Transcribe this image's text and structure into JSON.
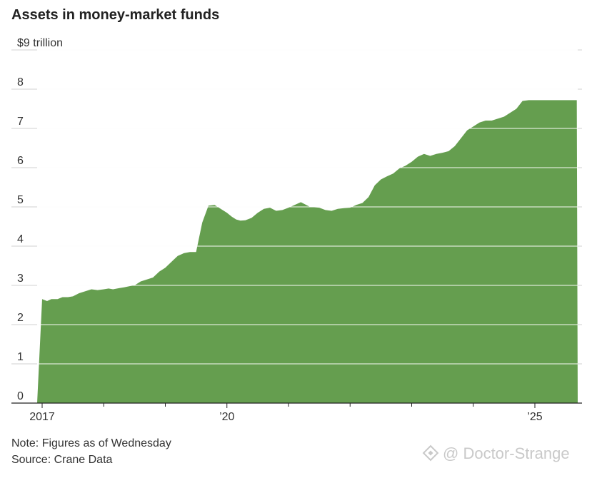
{
  "chart_data": {
    "type": "area",
    "title": "Assets in money-market funds",
    "ylabel": "$9 trillion",
    "ylim": [
      0,
      9
    ],
    "yticks": [
      0,
      1,
      2,
      3,
      4,
      5,
      6,
      7,
      8,
      9
    ],
    "ytick_labels": [
      "0",
      "1",
      "2",
      "3",
      "4",
      "5",
      "6",
      "7",
      "8",
      "$9 trillion"
    ],
    "xlim": [
      2017.0,
      2025.7
    ],
    "xticks": [
      2017,
      2020,
      2025
    ],
    "xtick_labels": [
      "2017",
      "’20",
      "’25"
    ],
    "grid": true,
    "colors": {
      "fill": "#659e4f",
      "grid": "#d0d0d0",
      "axis": "#222222"
    },
    "series": [
      {
        "x": [
          2017.0,
          2017.08,
          2017.15,
          2017.25,
          2017.33,
          2017.42,
          2017.5,
          2017.6,
          2017.7,
          2017.8,
          2017.9,
          2018.0,
          2018.08,
          2018.15,
          2018.25,
          2018.33,
          2018.42,
          2018.5,
          2018.6,
          2018.7,
          2018.8,
          2018.9,
          2019.0,
          2019.1,
          2019.2,
          2019.3,
          2019.4,
          2019.5,
          2019.6,
          2019.7,
          2019.8,
          2019.9,
          2020.0,
          2020.08,
          2020.15,
          2020.22,
          2020.3,
          2020.4,
          2020.5,
          2020.6,
          2020.7,
          2020.8,
          2020.9,
          2021.0,
          2021.1,
          2021.2,
          2021.35,
          2021.5,
          2021.6,
          2021.7,
          2021.8,
          2021.9,
          2022.0,
          2022.1,
          2022.2,
          2022.3,
          2022.4,
          2022.5,
          2022.6,
          2022.7,
          2022.8,
          2022.9,
          2023.0,
          2023.1,
          2023.2,
          2023.3,
          2023.4,
          2023.5,
          2023.6,
          2023.7,
          2023.8,
          2023.9,
          2024.0,
          2024.1,
          2024.2,
          2024.3,
          2024.4,
          2024.5,
          2024.6,
          2024.7,
          2024.8,
          2024.9,
          2025.0,
          2025.1,
          2025.2,
          2025.3,
          2025.4,
          2025.5,
          2025.6,
          2025.68
        ],
        "values": [
          2.65,
          2.6,
          2.65,
          2.65,
          2.7,
          2.7,
          2.72,
          2.8,
          2.85,
          2.9,
          2.88,
          2.9,
          2.92,
          2.9,
          2.93,
          2.95,
          2.98,
          3.0,
          3.1,
          3.15,
          3.2,
          3.35,
          3.45,
          3.6,
          3.75,
          3.82,
          3.85,
          3.85,
          4.6,
          5.03,
          5.05,
          4.95,
          4.85,
          4.75,
          4.68,
          4.65,
          4.66,
          4.72,
          4.85,
          4.95,
          4.98,
          4.9,
          4.92,
          4.98,
          5.05,
          5.12,
          5.0,
          4.98,
          4.92,
          4.9,
          4.95,
          4.97,
          4.98,
          5.05,
          5.1,
          5.25,
          5.55,
          5.7,
          5.78,
          5.85,
          5.98,
          6.05,
          6.15,
          6.28,
          6.35,
          6.3,
          6.35,
          6.38,
          6.42,
          6.55,
          6.75,
          6.95,
          7.05,
          7.15,
          7.2,
          7.2,
          7.25,
          7.3,
          7.4,
          7.5,
          7.7,
          7.72,
          7.72,
          7.72,
          7.72,
          7.72,
          7.72,
          7.72,
          7.72,
          7.72
        ]
      }
    ]
  },
  "notes": {
    "note": "Note: Figures as of Wednesday",
    "source": "Source: Crane Data"
  },
  "watermark": {
    "text": "@ Doctor-Strange"
  }
}
